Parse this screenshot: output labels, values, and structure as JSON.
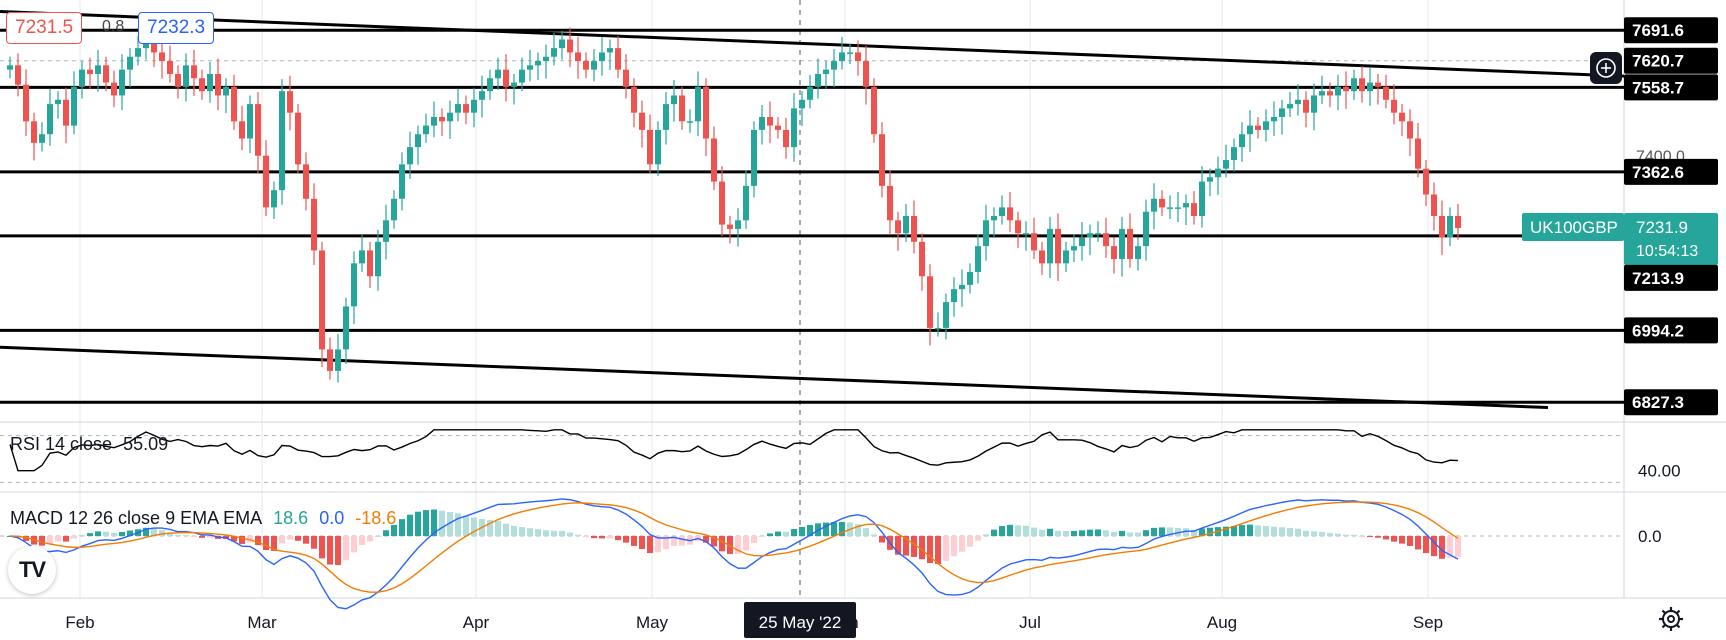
{
  "header": {
    "bid": "7231.5",
    "spread": "0.8",
    "ask": "7232.3"
  },
  "symbol_label": "UK100GBP",
  "last_price": "7231.9",
  "countdown": "10:54:13",
  "crosshair_date": "25 May '22",
  "rsi_legend": {
    "name": "RSI 14 close",
    "value": "55.09"
  },
  "macd_legend": {
    "name": "MACD 12 26 close 9 EMA EMA",
    "v1": "18.6",
    "v2": "0.0",
    "v3": "-18.6"
  },
  "colors": {
    "up": "#26a69a",
    "down": "#ef5350",
    "macd": "#2962ff",
    "signal": "#f57c00",
    "hist_up_strong": "#26a69a",
    "hist_up_weak": "#b2dfdb",
    "hist_down_strong": "#ef5350",
    "hist_down_weak": "#ffcdd2",
    "tag": "#26a69a"
  },
  "chart_data": {
    "type": "candlestick",
    "title": "",
    "symbol": "UK100GBP",
    "ylim": [
      6800,
      7720
    ],
    "months": [
      "Feb",
      "Mar",
      "Apr",
      "May",
      "Jun",
      "Jul",
      "Aug",
      "Sep"
    ],
    "price_axis_labels": [
      "7691.6",
      "7620.7",
      "7558.7",
      "7400.0",
      "7362.6",
      "7231.9",
      "7213.9",
      "6994.2",
      "6827.3"
    ],
    "horizontal_levels": [
      7691.6,
      7558.7,
      7362.6,
      7213.9,
      6994.2,
      6827.3
    ],
    "dashed_level": 7620.7,
    "closes": [
      7610,
      7565,
      7480,
      7430,
      7450,
      7520,
      7530,
      7470,
      7560,
      7600,
      7590,
      7610,
      7570,
      7540,
      7600,
      7630,
      7650,
      7680,
      7640,
      7620,
      7590,
      7560,
      7610,
      7580,
      7550,
      7590,
      7540,
      7560,
      7480,
      7440,
      7520,
      7400,
      7280,
      7320,
      7550,
      7500,
      7380,
      7300,
      7180,
      6950,
      6900,
      6950,
      7050,
      7150,
      7180,
      7120,
      7200,
      7250,
      7300,
      7380,
      7420,
      7450,
      7470,
      7490,
      7480,
      7500,
      7520,
      7500,
      7530,
      7550,
      7580,
      7600,
      7560,
      7570,
      7600,
      7610,
      7620,
      7630,
      7650,
      7670,
      7640,
      7620,
      7600,
      7620,
      7640,
      7650,
      7600,
      7560,
      7500,
      7460,
      7380,
      7460,
      7520,
      7540,
      7480,
      7480,
      7560,
      7440,
      7340,
      7240,
      7230,
      7250,
      7330,
      7460,
      7490,
      7470,
      7460,
      7420,
      7510,
      7530,
      7560,
      7590,
      7600,
      7620,
      7640,
      7640,
      7620,
      7560,
      7450,
      7330,
      7250,
      7220,
      7260,
      7200,
      7120,
      7000,
      7000,
      7060,
      7090,
      7100,
      7130,
      7190,
      7250,
      7260,
      7280,
      7250,
      7220,
      7220,
      7180,
      7150,
      7230,
      7150,
      7180,
      7190,
      7210,
      7220,
      7220,
      7190,
      7160,
      7230,
      7160,
      7190,
      7270,
      7300,
      7280,
      7280,
      7280,
      7290,
      7260,
      7340,
      7350,
      7370,
      7390,
      7420,
      7450,
      7470,
      7460,
      7480,
      7490,
      7510,
      7520,
      7530,
      7500,
      7540,
      7550,
      7540,
      7560,
      7550,
      7580,
      7550,
      7570,
      7560,
      7530,
      7500,
      7480,
      7440,
      7370,
      7310,
      7260,
      7210,
      7260,
      7232
    ]
  }
}
